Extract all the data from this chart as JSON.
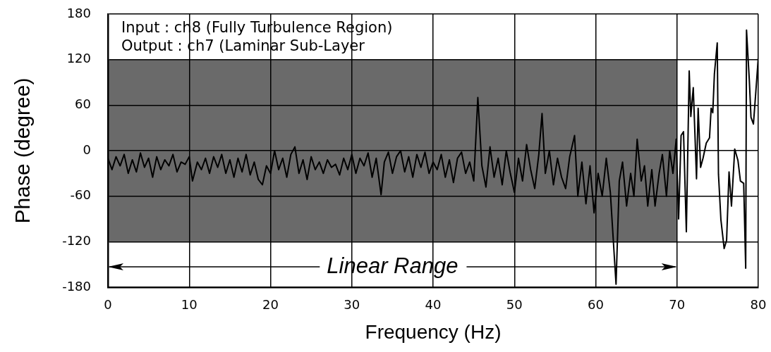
{
  "chart_data": {
    "type": "line",
    "xlabel": "Frequency (Hz)",
    "ylabel": "Phase (degree)",
    "x": [
      0,
      0.5,
      1,
      1.5,
      2,
      2.5,
      3,
      3.5,
      4,
      4.5,
      5,
      5.5,
      6,
      6.5,
      7,
      7.5,
      8,
      8.5,
      9,
      9.5,
      10,
      10.4,
      11,
      11.5,
      12,
      12.5,
      13,
      13.5,
      14,
      14.5,
      15,
      15.5,
      16,
      16.5,
      17,
      17.5,
      18,
      18.5,
      19,
      19.5,
      20,
      20.5,
      21,
      21.5,
      22,
      22.5,
      23,
      23.5,
      24,
      24.5,
      25,
      25.5,
      26,
      26.5,
      27,
      27.5,
      28,
      28.5,
      29,
      29.5,
      30,
      30.5,
      31,
      31.5,
      32,
      32.5,
      33,
      33.6,
      34,
      34.5,
      35,
      35.5,
      36,
      36.5,
      37,
      37.5,
      38,
      38.5,
      39,
      39.5,
      40,
      40.5,
      41,
      41.5,
      42,
      42.5,
      43,
      43.5,
      44,
      44.5,
      45,
      45.5,
      46,
      46.5,
      47,
      47.5,
      48,
      48.5,
      49,
      49.5,
      50,
      50.5,
      51,
      51.5,
      52,
      52.5,
      53,
      53.4,
      53.8,
      54.3,
      54.8,
      55.3,
      55.8,
      56.3,
      56.8,
      57.4,
      57.8,
      58.3,
      58.8,
      59.3,
      59.8,
      60.3,
      60.8,
      61.3,
      61.8,
      62.5,
      62.9,
      63.3,
      63.8,
      64.3,
      64.7,
      65.1,
      65.6,
      66,
      66.4,
      66.9,
      67.3,
      67.8,
      68.2,
      68.7,
      69.1,
      69.5,
      69.9,
      70.2,
      70.5,
      70.8,
      71.15,
      71.5,
      71.7,
      72,
      72.4,
      72.6,
      72.9,
      73.2,
      73.6,
      74,
      74.2,
      74.4,
      74.6,
      74.95,
      75.1,
      75.4,
      75.8,
      76.1,
      76.4,
      76.7,
      77.1,
      77.5,
      77.8,
      78.2,
      78.45,
      78.55,
      78.9,
      79.1,
      79.4,
      79.7,
      80
    ],
    "values": [
      -10,
      -25,
      -8,
      -20,
      -5,
      -30,
      -12,
      -28,
      -3,
      -22,
      -10,
      -35,
      -8,
      -25,
      -12,
      -20,
      -5,
      -28,
      -15,
      -18,
      -8,
      -40,
      -15,
      -25,
      -10,
      -30,
      -8,
      -22,
      -5,
      -30,
      -12,
      -35,
      -10,
      -28,
      -5,
      -32,
      -15,
      -38,
      -45,
      -20,
      -30,
      0,
      -25,
      -10,
      -35,
      -5,
      5,
      -30,
      -12,
      -38,
      -8,
      -25,
      -15,
      -30,
      -12,
      -22,
      -18,
      -32,
      -10,
      -25,
      -5,
      -30,
      -10,
      -20,
      -3,
      -35,
      -10,
      -58,
      -15,
      -2,
      -30,
      -8,
      0,
      -28,
      -8,
      -35,
      -5,
      -22,
      -2,
      -30,
      -15,
      -25,
      -5,
      -35,
      -12,
      -42,
      -10,
      -2,
      -30,
      -15,
      -40,
      70,
      -20,
      -48,
      5,
      -35,
      -10,
      -45,
      0,
      -30,
      -55,
      -10,
      -40,
      8,
      -25,
      -50,
      -5,
      49,
      -30,
      0,
      -45,
      -10,
      -35,
      -50,
      -8,
      20,
      -60,
      -15,
      -70,
      -20,
      -82,
      -30,
      -60,
      -10,
      -55,
      -176,
      -40,
      -15,
      -73,
      -30,
      -60,
      15,
      -40,
      -20,
      -73,
      -25,
      -73,
      -30,
      -5,
      -60,
      0,
      -30,
      15,
      -90,
      20,
      25,
      -107,
      105,
      45,
      83,
      -37,
      56,
      -22,
      -10,
      10,
      17,
      56,
      50,
      101,
      142,
      -31,
      -91,
      -129,
      -118,
      -28,
      -73,
      2,
      -13,
      -40,
      -43,
      -155,
      159,
      92,
      44,
      35,
      78,
      123
    ],
    "color": "#000000",
    "xlim": [
      0,
      80
    ],
    "xticks": [
      0,
      10,
      20,
      30,
      40,
      50,
      60,
      70,
      80
    ],
    "ylim": [
      -180,
      180
    ],
    "yticks": [
      -180,
      -120,
      -60,
      0,
      60,
      120,
      180
    ],
    "grid": true,
    "marker": "none",
    "line_style": "solid",
    "bands": [
      {
        "axis": "x",
        "from": 0,
        "to": 70,
        "label": "Linear Range",
        "color": "#6a6a6a"
      }
    ],
    "annotations": [
      "Input : ch8 (Fully Turbulence Region)",
      "Output : ch7 (Laminar Sub-Layer"
    ]
  }
}
